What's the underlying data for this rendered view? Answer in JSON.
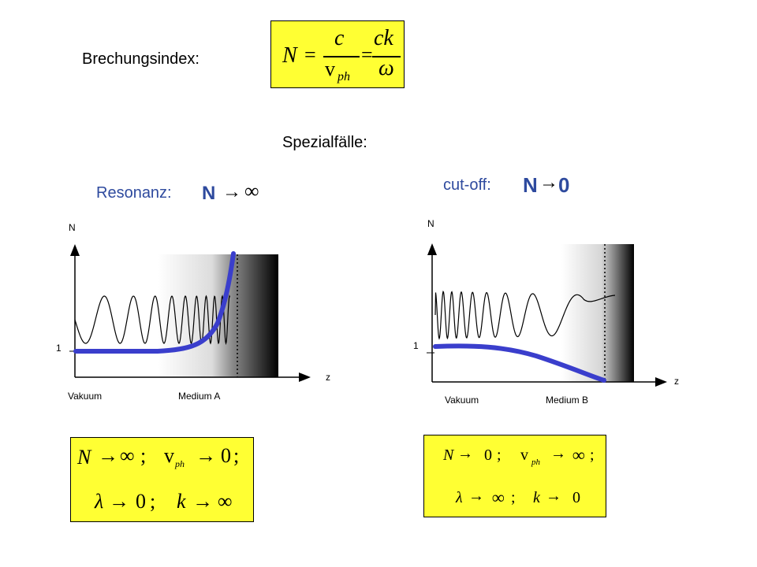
{
  "header": {
    "brechungsindex_label": "Brechungsindex:",
    "spezialfaelle_label": "Spezialfälle:"
  },
  "formula_main": {
    "lhs": "N",
    "eq1": "=",
    "frac1_num": "c",
    "frac1_den_v": "v",
    "frac1_den_sub": "ph",
    "eq2": "=",
    "frac2_num": "ck",
    "frac2_den": "ω"
  },
  "resonanz": {
    "title": "Resonanz:",
    "limit_n": "N",
    "limit_arrow": "→",
    "limit_value": "∞",
    "axis_n": "N",
    "axis_z": "z",
    "tick_1": "1",
    "region_vakuum": "Vakuum",
    "region_medium": "Medium A",
    "box_line1": [
      "N",
      "→",
      "∞",
      ";",
      "v",
      "ph",
      "→",
      "0",
      ";"
    ],
    "box_line2": [
      "λ",
      "→",
      "0",
      ";",
      "k",
      "→",
      "∞"
    ]
  },
  "cutoff": {
    "title": "cut-off:",
    "limit_n": "N",
    "limit_arrow": "→",
    "limit_value": "0",
    "axis_n": "N",
    "axis_z": "z",
    "tick_1": "1",
    "region_vakuum": "Vakuum",
    "region_medium": "Medium B",
    "box_line1": [
      "N",
      "→",
      "0",
      ";",
      "v",
      "ph",
      "→",
      "∞",
      ";"
    ],
    "box_line2": [
      "λ",
      "→",
      "∞",
      ";",
      "k",
      "→",
      "0"
    ]
  },
  "colors": {
    "box_fill": "#ffff33",
    "curve_blue": "#3a3ecc",
    "title_blue": "#2e4a9e"
  }
}
